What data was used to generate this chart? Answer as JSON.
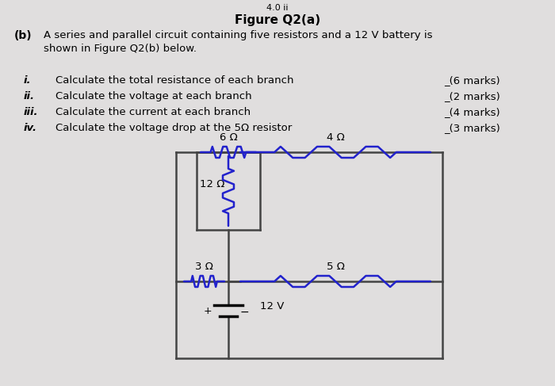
{
  "title": "Figure Q2(a)",
  "title_top": "4.0 ii",
  "subtitle_b": "(b)",
  "subtitle_text": "A series and parallel circuit containing five resistors and a 12 V battery is\nshown in Figure Q2(b) below.",
  "questions": [
    {
      "num": "i.",
      "text": "Calculate the total resistance of each branch",
      "marks": "_(6 marks)"
    },
    {
      "num": "ii.",
      "text": "Calculate the voltage at each branch",
      "marks": "_(2 marks)"
    },
    {
      "num": "iii.",
      "text": "Calculate the current at each branch",
      "marks": "_(4 marks)"
    },
    {
      "num": "iv.",
      "text": "Calculate the voltage drop at the 5Ω resistor",
      "marks": "_(3 marks)"
    }
  ],
  "bg_color": "#e0dede",
  "resistor_color": "#2222cc",
  "wire_color": "#444444",
  "text_color": "#000000",
  "R6_label": "6 Ω",
  "R12_label": "12 Ω",
  "R3_label": "3 Ω",
  "R4_label": "4 Ω",
  "R5_label": "5 Ω",
  "battery_label": "12 V"
}
